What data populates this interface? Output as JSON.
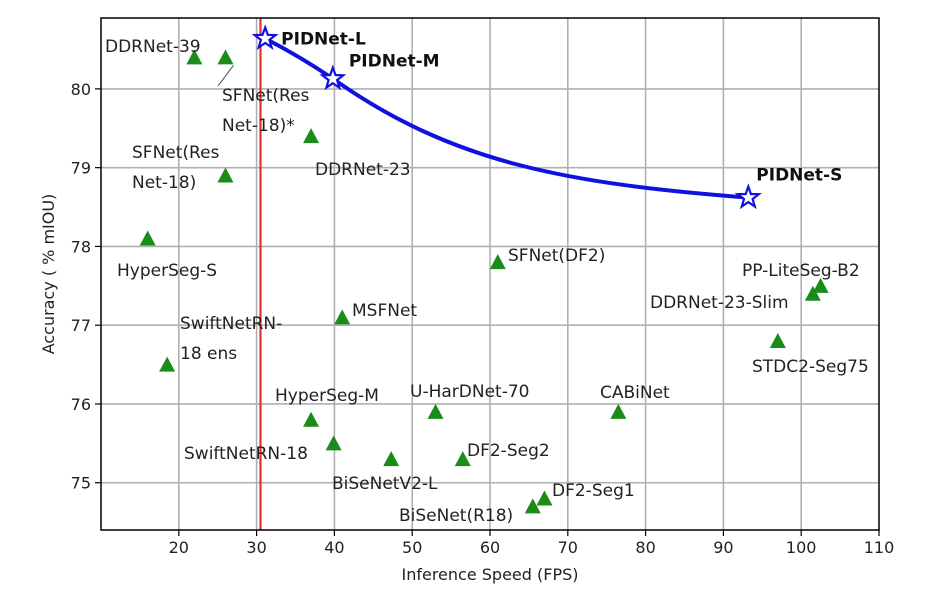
{
  "chart_data": {
    "type": "scatter",
    "xlabel": "Inference Speed (FPS)",
    "ylabel": "Accuracy ( % mIOU)",
    "xlim": [
      10,
      110
    ],
    "ylim": [
      74.4,
      80.9
    ],
    "xticks": [
      20,
      30,
      40,
      50,
      60,
      70,
      80,
      90,
      100,
      110
    ],
    "yticks": [
      75,
      76,
      77,
      78,
      79,
      80
    ],
    "grid": true,
    "reference_line": {
      "x": 30.5,
      "color": "#e03030"
    },
    "colors": {
      "triangle": "#1a8c1a",
      "pidnet": "#1010e0",
      "grid": "#b0b0b0"
    },
    "points": [
      {
        "label": [
          "DDRNet-39"
        ],
        "x": 22,
        "y": 80.4
      },
      {
        "label": [
          "SFNet(Res",
          "Net-18)*"
        ],
        "x": 26,
        "y": 80.4
      },
      {
        "label": [
          "SFNet(Res",
          "Net-18)"
        ],
        "x": 26,
        "y": 78.9
      },
      {
        "label": [
          "DDRNet-23"
        ],
        "x": 37,
        "y": 79.4
      },
      {
        "label": [
          "HyperSeg-S"
        ],
        "x": 16,
        "y": 78.1
      },
      {
        "label": [
          "SwiftNetRN-",
          "18 ens"
        ],
        "x": 18.5,
        "y": 76.5
      },
      {
        "label": [
          "MSFNet"
        ],
        "x": 41,
        "y": 77.1
      },
      {
        "label": [
          "SFNet(DF2)"
        ],
        "x": 61,
        "y": 77.8
      },
      {
        "label": [
          "PP-LiteSeg-B2"
        ],
        "x": 102.5,
        "y": 77.5
      },
      {
        "label": [
          "DDRNet-23-Slim"
        ],
        "x": 101.5,
        "y": 77.4
      },
      {
        "label": [
          "STDC2-Seg75"
        ],
        "x": 97,
        "y": 76.8
      },
      {
        "label": [
          "HyperSeg-M"
        ],
        "x": 37,
        "y": 75.8
      },
      {
        "label": [
          "U-HarDNet-70"
        ],
        "x": 53,
        "y": 75.9
      },
      {
        "label": [
          "CABiNet"
        ],
        "x": 76.5,
        "y": 75.9
      },
      {
        "label": [
          "SwiftNetRN-18"
        ],
        "x": 39.9,
        "y": 75.5
      },
      {
        "label": [
          "BiSeNetV2-L"
        ],
        "x": 47.3,
        "y": 75.3
      },
      {
        "label": [
          "DF2-Seg2"
        ],
        "x": 56.5,
        "y": 75.3
      },
      {
        "label": [
          "DF2-Seg1"
        ],
        "x": 67,
        "y": 74.8
      },
      {
        "label": [
          "BiSeNet(R18)"
        ],
        "x": 65.5,
        "y": 74.7
      }
    ],
    "pidnet_series": [
      {
        "label": "PIDNet-L",
        "x": 31.1,
        "y": 80.64
      },
      {
        "label": "PIDNet-M",
        "x": 39.8,
        "y": 80.13
      },
      {
        "label": "PIDNet-S",
        "x": 93.2,
        "y": 78.62
      }
    ]
  }
}
